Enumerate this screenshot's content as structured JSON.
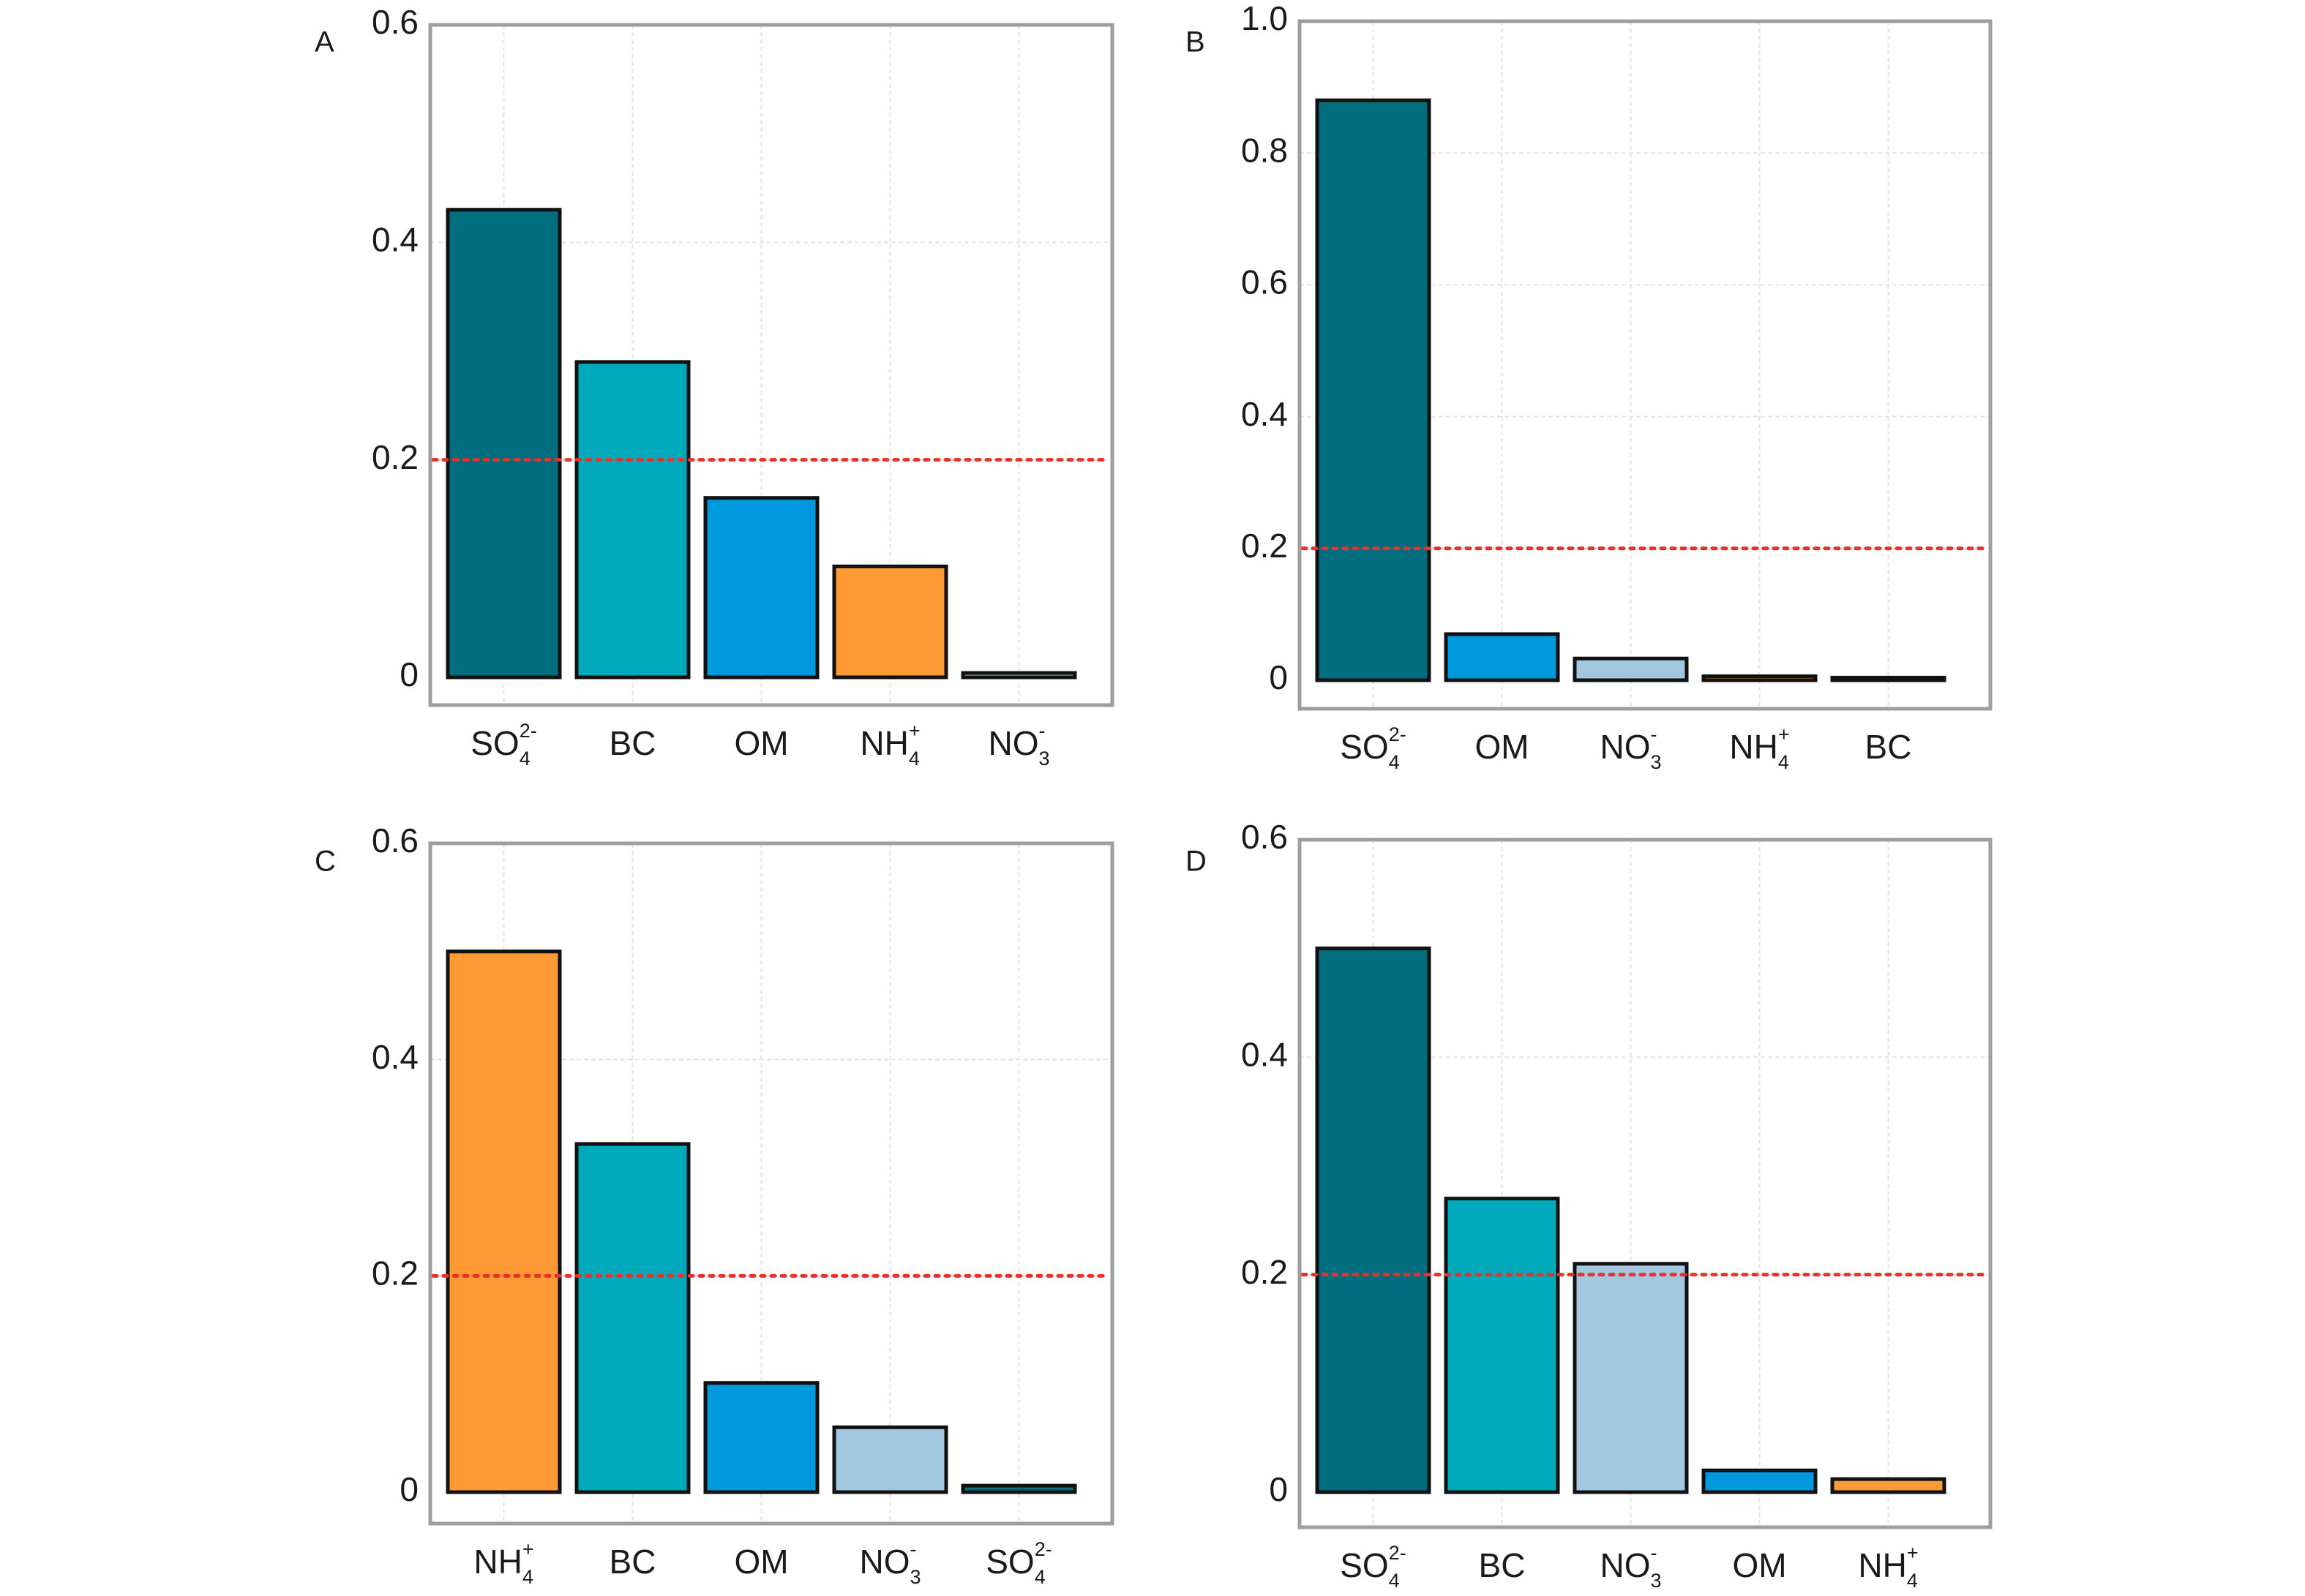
{
  "colors": {
    "SO4": "#006e7f",
    "BC": "#00aabb",
    "OM": "#0099dd",
    "NH4": "#ff9933",
    "NO3": "#a3c7e0",
    "threshold_line": "#e8312a",
    "frame": "#9e9e9e",
    "gridline": "#e3e3e3",
    "bar_outline": "#111111"
  },
  "chart_data": [
    {
      "panel": "A",
      "type": "bar",
      "categories": [
        "SO4^{2-}",
        "BC",
        "OM",
        "NH4^{+}",
        "NO3^{-}"
      ],
      "values": [
        0.43,
        0.29,
        0.165,
        0.102,
        0.004
      ],
      "bar_colors": [
        "SO4",
        "BC",
        "OM",
        "NH4",
        "NO3"
      ],
      "reference_line": 0.2,
      "ylim": [
        0,
        0.6
      ],
      "yticks": [
        0,
        0.2,
        0.4,
        0.6
      ],
      "ytick_labels": [
        "0",
        "0.2",
        "0.4",
        "0.6"
      ]
    },
    {
      "panel": "B",
      "type": "bar",
      "categories": [
        "SO4^{2-}",
        "OM",
        "NO3^{-}",
        "NH4^{+}",
        "BC"
      ],
      "values": [
        0.88,
        0.07,
        0.033,
        0.006,
        0.004
      ],
      "bar_colors": [
        "SO4",
        "OM",
        "NO3",
        "NH4",
        "BC"
      ],
      "reference_line": 0.2,
      "ylim": [
        0,
        1.0
      ],
      "yticks": [
        0,
        0.2,
        0.4,
        0.6,
        0.8,
        1.0
      ],
      "ytick_labels": [
        "0",
        "0.2",
        "0.4",
        "0.6",
        "0.8",
        "1.0"
      ]
    },
    {
      "panel": "C",
      "type": "bar",
      "categories": [
        "NH4^{+}",
        "BC",
        "OM",
        "NO3^{-}",
        "SO4^{2-}"
      ],
      "values": [
        0.5,
        0.322,
        0.101,
        0.06,
        0.006
      ],
      "bar_colors": [
        "NH4",
        "BC",
        "OM",
        "NO3",
        "SO4"
      ],
      "reference_line": 0.2,
      "ylim": [
        0,
        0.6
      ],
      "yticks": [
        0,
        0.2,
        0.4,
        0.6
      ],
      "ytick_labels": [
        "0",
        "0.2",
        "0.4",
        "0.6"
      ]
    },
    {
      "panel": "D",
      "type": "bar",
      "categories": [
        "SO4^{2-}",
        "BC",
        "NO3^{-}",
        "OM",
        "NH4^{+}"
      ],
      "values": [
        0.5,
        0.27,
        0.21,
        0.02,
        0.012
      ],
      "bar_colors": [
        "SO4",
        "BC",
        "NO3",
        "OM",
        "NH4"
      ],
      "reference_line": 0.2,
      "ylim": [
        0,
        0.6
      ],
      "yticks": [
        0,
        0.2,
        0.4,
        0.6
      ],
      "ytick_labels": [
        "0",
        "0.2",
        "0.4",
        "0.6"
      ]
    }
  ]
}
